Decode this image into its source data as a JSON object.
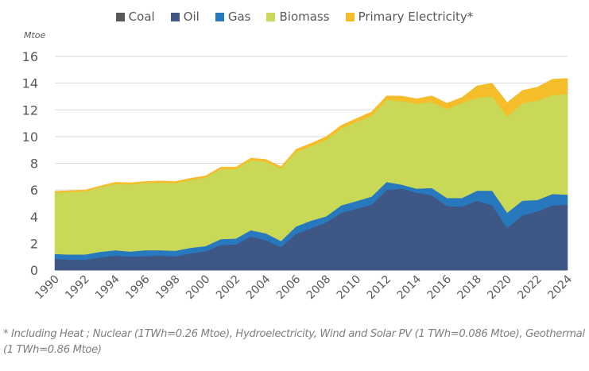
{
  "chart_data": {
    "type": "area",
    "stacked": true,
    "title": "",
    "xlabel": "",
    "ylabel": "Mtoe",
    "ylim": [
      0,
      16
    ],
    "yticks": [
      0,
      2,
      4,
      6,
      8,
      10,
      12,
      14,
      16
    ],
    "grid": true,
    "legend_position": "top-center",
    "x": [
      1990,
      1991,
      1992,
      1993,
      1994,
      1995,
      1996,
      1997,
      1998,
      1999,
      2000,
      2001,
      2002,
      2003,
      2004,
      2005,
      2006,
      2007,
      2008,
      2009,
      2010,
      2011,
      2012,
      2013,
      2014,
      2015,
      2016,
      2017,
      2018,
      2019,
      2020,
      2021,
      2022,
      2023,
      2024
    ],
    "xtick_labels": [
      "1990",
      "1992",
      "1994",
      "1996",
      "1998",
      "2000",
      "2002",
      "2004",
      "2006",
      "2008",
      "2010",
      "2012",
      "2014",
      "2016",
      "2018",
      "2020",
      "2022",
      "2024"
    ],
    "series": [
      {
        "name": "Coal",
        "color": "#595959",
        "values": [
          0,
          0,
          0,
          0,
          0,
          0,
          0,
          0,
          0,
          0,
          0,
          0,
          0,
          0,
          0,
          0,
          0,
          0,
          0,
          0,
          0,
          0,
          0,
          0,
          0,
          0,
          0,
          0,
          0,
          0,
          0,
          0,
          0,
          0,
          0
        ]
      },
      {
        "name": "Oil",
        "color": "#3e5785",
        "values": [
          0.85,
          0.79,
          0.77,
          0.95,
          1.09,
          1.01,
          1.05,
          1.09,
          1.03,
          1.25,
          1.41,
          1.89,
          1.92,
          2.52,
          2.24,
          1.73,
          2.72,
          3.15,
          3.57,
          4.3,
          4.6,
          4.9,
          6.0,
          6.1,
          5.8,
          5.6,
          4.8,
          4.75,
          5.2,
          4.85,
          3.17,
          4.1,
          4.4,
          4.85,
          4.9
        ]
      },
      {
        "name": "Gas",
        "color": "#2878be",
        "values": [
          0.36,
          0.38,
          0.4,
          0.42,
          0.4,
          0.38,
          0.44,
          0.4,
          0.42,
          0.42,
          0.39,
          0.43,
          0.44,
          0.47,
          0.51,
          0.45,
          0.55,
          0.56,
          0.46,
          0.55,
          0.57,
          0.6,
          0.6,
          0.3,
          0.3,
          0.55,
          0.6,
          0.65,
          0.75,
          1.1,
          1.13,
          1.1,
          0.85,
          0.85,
          0.75
        ]
      },
      {
        "name": "Biomass",
        "color": "#c9d856",
        "values": [
          4.59,
          4.68,
          4.73,
          4.83,
          4.96,
          5.03,
          5.03,
          5.07,
          5.07,
          5.08,
          5.13,
          5.24,
          5.2,
          5.23,
          5.37,
          5.4,
          5.59,
          5.57,
          5.74,
          5.75,
          5.93,
          6.05,
          6.15,
          6.25,
          6.35,
          6.45,
          6.65,
          7.13,
          6.95,
          7.05,
          7.2,
          7.3,
          7.45,
          7.4,
          7.55
        ]
      },
      {
        "name": "Primary Electricity*",
        "color": "#f6bd2b",
        "values": [
          0.1,
          0.1,
          0.1,
          0.1,
          0.13,
          0.12,
          0.12,
          0.12,
          0.12,
          0.13,
          0.13,
          0.15,
          0.15,
          0.17,
          0.17,
          0.17,
          0.19,
          0.22,
          0.23,
          0.25,
          0.25,
          0.3,
          0.3,
          0.38,
          0.38,
          0.45,
          0.45,
          0.4,
          0.9,
          1.0,
          1.05,
          0.95,
          1.0,
          1.2,
          1.15
        ]
      }
    ],
    "annotations": [
      "* Including Heat ; Nuclear (1TWh=0.26 Mtoe), Hydroelectricity, Wind and Solar PV (1 TWh=0.086 Mtoe), Geothermal (1 TWh=0.86 Mtoe)"
    ]
  },
  "unit_label": "Mtoe",
  "footnote": "* Including Heat ; Nuclear (1TWh=0.26 Mtoe), Hydroelectricity, Wind and Solar PV (1 TWh=0.086 Mtoe), Geothermal (1 TWh=0.86 Mtoe)",
  "legend": [
    {
      "label": "Coal",
      "color": "#595959"
    },
    {
      "label": "Oil",
      "color": "#3e5785"
    },
    {
      "label": "Gas",
      "color": "#2878be"
    },
    {
      "label": "Biomass",
      "color": "#c9d856"
    },
    {
      "label": "Primary Electricity*",
      "color": "#f6bd2b"
    }
  ]
}
